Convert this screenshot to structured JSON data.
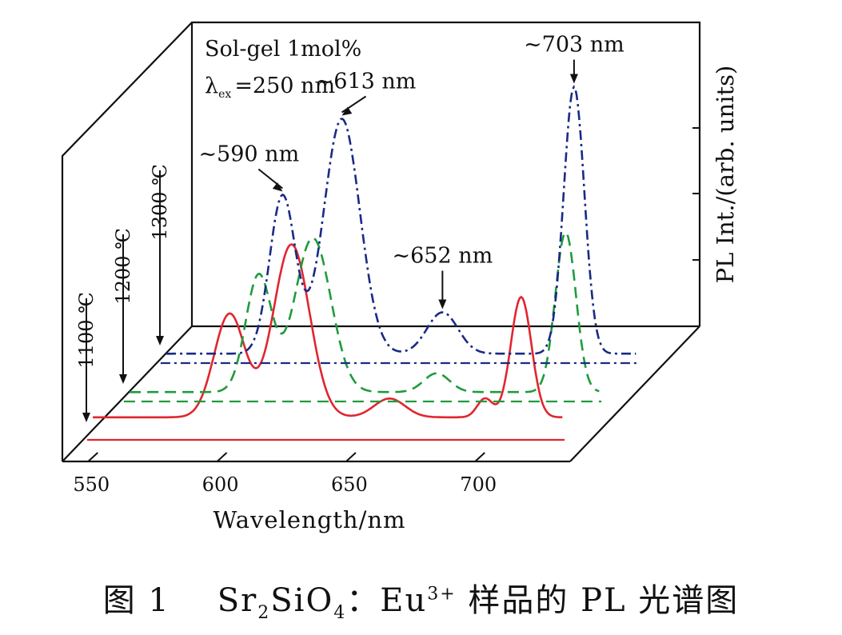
{
  "chart_data": {
    "type": "line",
    "xlabel": "Wavelength/nm",
    "ylabel": "PL Int./(arb. units)",
    "xlim": [
      540,
      730
    ],
    "x_ticks": [
      "550",
      "600",
      "650",
      "700"
    ],
    "grid": false,
    "info_lines": [
      "Sol-gel 1mol%",
      "λex =250 nm"
    ],
    "info_parts": {
      "lambda": "λ",
      "sub": "ex",
      "rest": "=250 nm"
    },
    "annotations": [
      {
        "text": "~590 nm",
        "series": 2,
        "x": 590
      },
      {
        "text": "~613 nm",
        "series": 2,
        "x": 613
      },
      {
        "text": "~652 nm",
        "series": 2,
        "x": 652
      },
      {
        "text": "~703 nm",
        "series": 2,
        "x": 703
      }
    ],
    "series": [
      {
        "name": "1100 ℃",
        "color": "#e0262f",
        "dash": "solid",
        "peaks": [
          [
            598,
            0.55,
            6
          ],
          [
            622,
            0.92,
            7
          ],
          [
            660,
            0.1,
            6
          ],
          [
            697,
            0.1,
            3
          ],
          [
            711,
            0.64,
            4
          ]
        ],
        "baseline": 0.12
      },
      {
        "name": "1200 ℃",
        "color": "#1f9b3c",
        "dash": "dashed",
        "peaks": [
          [
            595,
            0.62,
            5
          ],
          [
            616,
            0.82,
            7
          ],
          [
            664,
            0.1,
            5
          ],
          [
            714,
            0.85,
            4
          ]
        ],
        "baseline": 0.05
      },
      {
        "name": "1300 ℃",
        "color": "#1a2a86",
        "dash": "dashdot",
        "peaks": [
          [
            590,
            0.84,
            5
          ],
          [
            613,
            1.25,
            7
          ],
          [
            652,
            0.22,
            6
          ],
          [
            703,
            1.42,
            4
          ]
        ],
        "baseline": 0.05
      }
    ]
  },
  "caption": {
    "fig": "图 1",
    "formula_a": "Sr",
    "sub_a": "2",
    "formula_b": "SiO",
    "sub_b": "4",
    "sep": "：Eu",
    "sup": "3+",
    "tail": "样品的 PL 光谱图"
  }
}
